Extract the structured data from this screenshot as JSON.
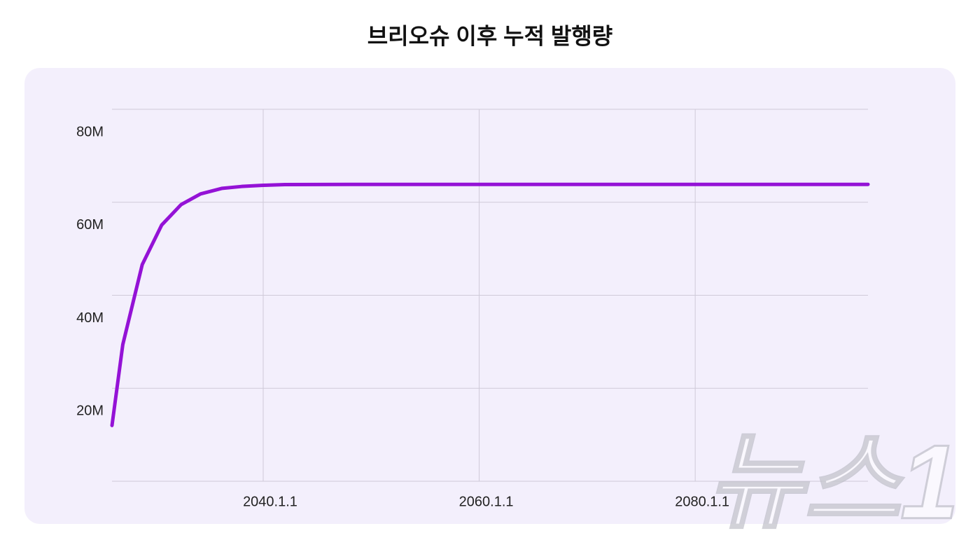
{
  "chart_data": {
    "type": "line",
    "title": "브리오슈 이후 누적 발행량",
    "x": [
      2026,
      2027,
      2028.8,
      2030.6,
      2032.4,
      2034.2,
      2036.2,
      2038,
      2040,
      2042,
      2048,
      2061,
      2096
    ],
    "series": [
      {
        "name": "누적 발행량",
        "color": "#9412d6",
        "values": [
          12000000,
          29400000,
          46600000,
          55100000,
          59500000,
          61800000,
          63000000,
          63400000,
          63650000,
          63800000,
          63850000,
          63850000,
          63850000
        ]
      }
    ],
    "xlim": [
      2026,
      2096
    ],
    "xticks": [
      {
        "value": 2040,
        "label": "2040.1.1"
      },
      {
        "value": 2060,
        "label": "2060.1.1"
      },
      {
        "value": 2080,
        "label": "2080.1.1"
      }
    ],
    "ylim": [
      0,
      80000000
    ],
    "yticks": [
      {
        "value": 20000000,
        "label": "20M"
      },
      {
        "value": 40000000,
        "label": "40M"
      },
      {
        "value": 60000000,
        "label": "60M"
      },
      {
        "value": 80000000,
        "label": "80M"
      }
    ],
    "grid": true
  },
  "watermark": "뉴스1"
}
